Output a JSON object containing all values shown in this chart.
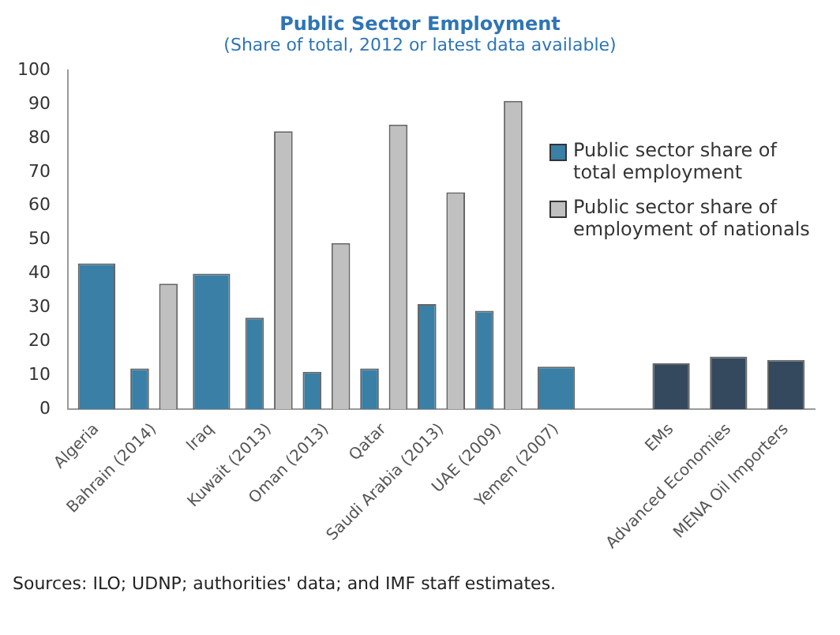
{
  "chart_data": {
    "type": "bar",
    "title": "Public Sector Employment",
    "subtitle": "(Share of total, 2012 or latest data available)",
    "categories": [
      "Algeria",
      "Bahrain (2014)",
      "Iraq",
      "Kuwait (2013)",
      "Oman (2013)",
      "Qatar",
      "Saudi Arabia (2013)",
      "UAE (2009)",
      "Yemen (2007)",
      null,
      "EMs",
      "Advanced Economies",
      "MENA Oil Importers"
    ],
    "series": [
      {
        "name": "Public sector share of total employment",
        "color": "#3a7fa5",
        "colors": [
          "#3a7fa5",
          "#3a7fa5",
          "#3a7fa5",
          "#3a7fa5",
          "#3a7fa5",
          "#3a7fa5",
          "#3a7fa5",
          "#3a7fa5",
          "#3a7fa5",
          "#3a7fa5",
          "#34495e",
          "#34495e",
          "#34495e"
        ],
        "values": [
          43,
          12,
          40,
          27,
          11,
          12,
          31,
          29,
          12.5,
          null,
          13.5,
          15.5,
          14.5
        ]
      },
      {
        "name": "Public sector share of employment of nationals",
        "color": "#c0c0c0",
        "values": [
          null,
          37,
          null,
          82,
          49,
          84,
          64,
          91,
          null,
          null,
          null,
          null,
          null
        ]
      }
    ],
    "ylim": [
      0,
      100
    ],
    "yticks": [
      0,
      10,
      20,
      30,
      40,
      50,
      60,
      70,
      80,
      90,
      100
    ],
    "legend": "top right",
    "annotations": [
      "Sources: ILO; UDNP; authorities' data; and IMF staff estimates."
    ]
  }
}
